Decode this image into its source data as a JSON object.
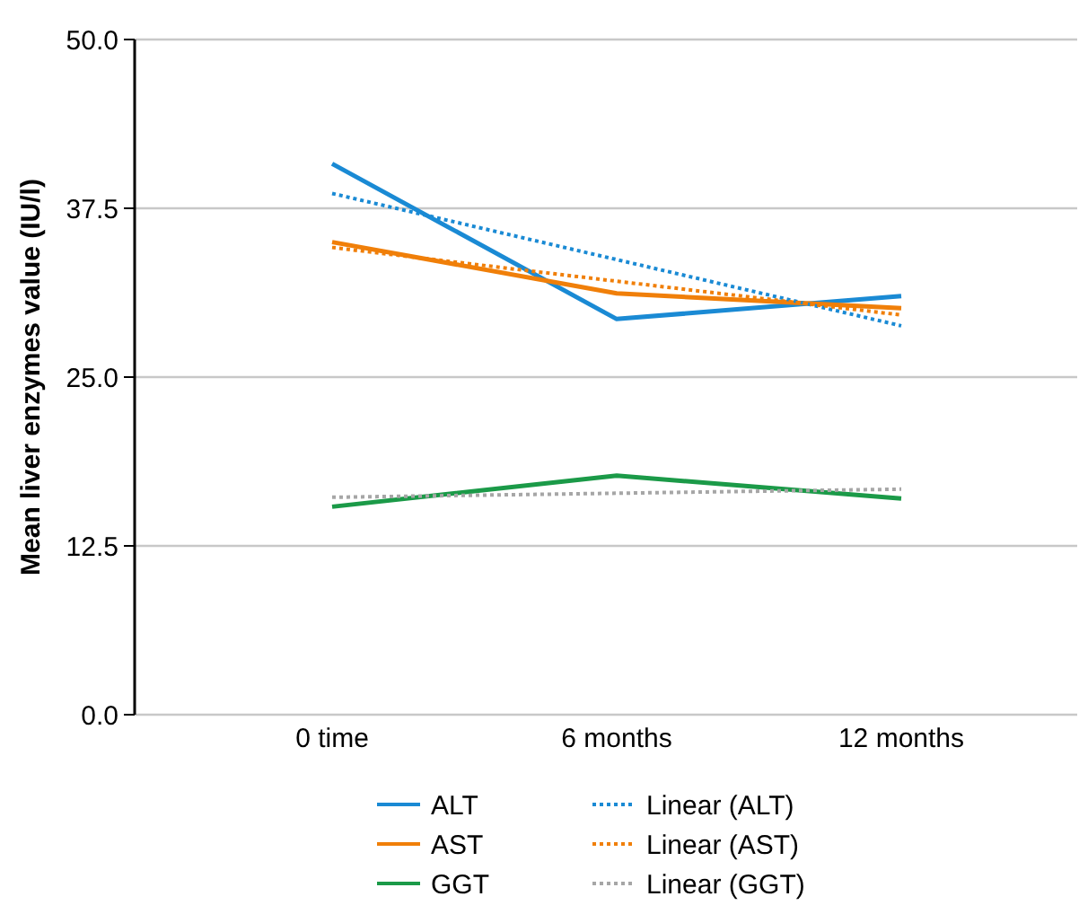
{
  "chart_data": {
    "type": "line",
    "ylabel": "Mean liver enzymes value (IU/l)",
    "categories": [
      "0 time",
      "6 months",
      "12 months"
    ],
    "series": [
      {
        "name": "ALT",
        "color": "#1a8ad4",
        "values": [
          40.8,
          29.3,
          31.0
        ],
        "line_style": "solid"
      },
      {
        "name": "AST",
        "color": "#f07f09",
        "values": [
          35.0,
          31.2,
          30.1
        ],
        "line_style": "solid"
      },
      {
        "name": "GGT",
        "color": "#1b9a48",
        "values": [
          15.4,
          17.7,
          16.0
        ],
        "line_style": "solid"
      },
      {
        "name": "Linear (ALT)",
        "color": "#1a8ad4",
        "values": [
          38.6,
          33.7,
          28.8
        ],
        "line_style": "dotted"
      },
      {
        "name": "Linear (AST)",
        "color": "#f07f09",
        "values": [
          34.6,
          32.1,
          29.6
        ],
        "line_style": "dotted"
      },
      {
        "name": "Linear (GGT)",
        "color": "#a6a6a6",
        "values": [
          16.1,
          16.4,
          16.7
        ],
        "line_style": "dotted"
      }
    ],
    "ylim": [
      0,
      50
    ],
    "yticks": [
      {
        "value": 0,
        "label": "0.0"
      },
      {
        "value": 12.5,
        "label": "12.5"
      },
      {
        "value": 25,
        "label": "25.0"
      },
      {
        "value": 37.5,
        "label": "37.5"
      },
      {
        "value": 50,
        "label": "50.0"
      }
    ],
    "grid": "y",
    "legend": "bottom"
  }
}
